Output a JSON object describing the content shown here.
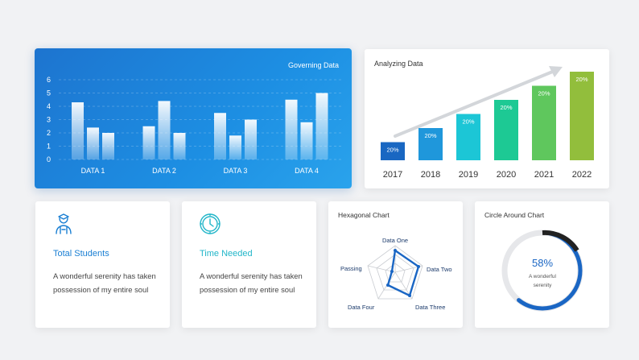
{
  "governing": {
    "title": "Governing Data",
    "colors": {
      "bar": "#ffffff"
    }
  },
  "analyzing": {
    "title": "Analyzing Data",
    "colors": [
      "#1967c2",
      "#1f97db",
      "#1cc6d6",
      "#1dc994",
      "#5fc75d",
      "#92be3c"
    ]
  },
  "students": {
    "icon": "student-icon",
    "title": "Total Students",
    "text": "A wonderful serenity has taken possession of my entire soul"
  },
  "time": {
    "icon": "clock-icon",
    "title": "Time Needed",
    "text": "A wonderful serenity has taken possession of my entire soul"
  },
  "hexagon": {
    "title": "Hexagonal Chart",
    "labels": [
      "Data One",
      "Data Two",
      "Data Three",
      "Data Four",
      "Passing"
    ]
  },
  "circle": {
    "title": "Circle Around Chart",
    "value": "58%",
    "sub_line1": "A wonderful",
    "sub_line2": "serenity",
    "fraction": 0.58
  },
  "chart_data": [
    {
      "type": "bar",
      "title": "Governing Data",
      "categories": [
        "DATA 1",
        "DATA 2",
        "DATA 3",
        "DATA 4"
      ],
      "series": [
        {
          "values": [
            4.3,
            2.5,
            3.5,
            4.5
          ]
        },
        {
          "values": [
            2.4,
            4.4,
            1.8,
            2.8
          ]
        },
        {
          "values": [
            2.0,
            2.0,
            3.0,
            5.0
          ]
        }
      ],
      "yticks": [
        "0",
        "1",
        "2",
        "3",
        "4",
        "5",
        "6"
      ],
      "ylim": [
        0,
        6
      ],
      "grid": true
    },
    {
      "type": "bar",
      "title": "Analyzing Data",
      "categories": [
        "2017",
        "2018",
        "2019",
        "2020",
        "2021",
        "2022"
      ],
      "values": [
        1,
        2,
        3,
        4,
        5,
        6
      ],
      "labels": [
        "20%",
        "20%",
        "20%",
        "20%",
        "20%",
        "20%"
      ]
    }
  ]
}
